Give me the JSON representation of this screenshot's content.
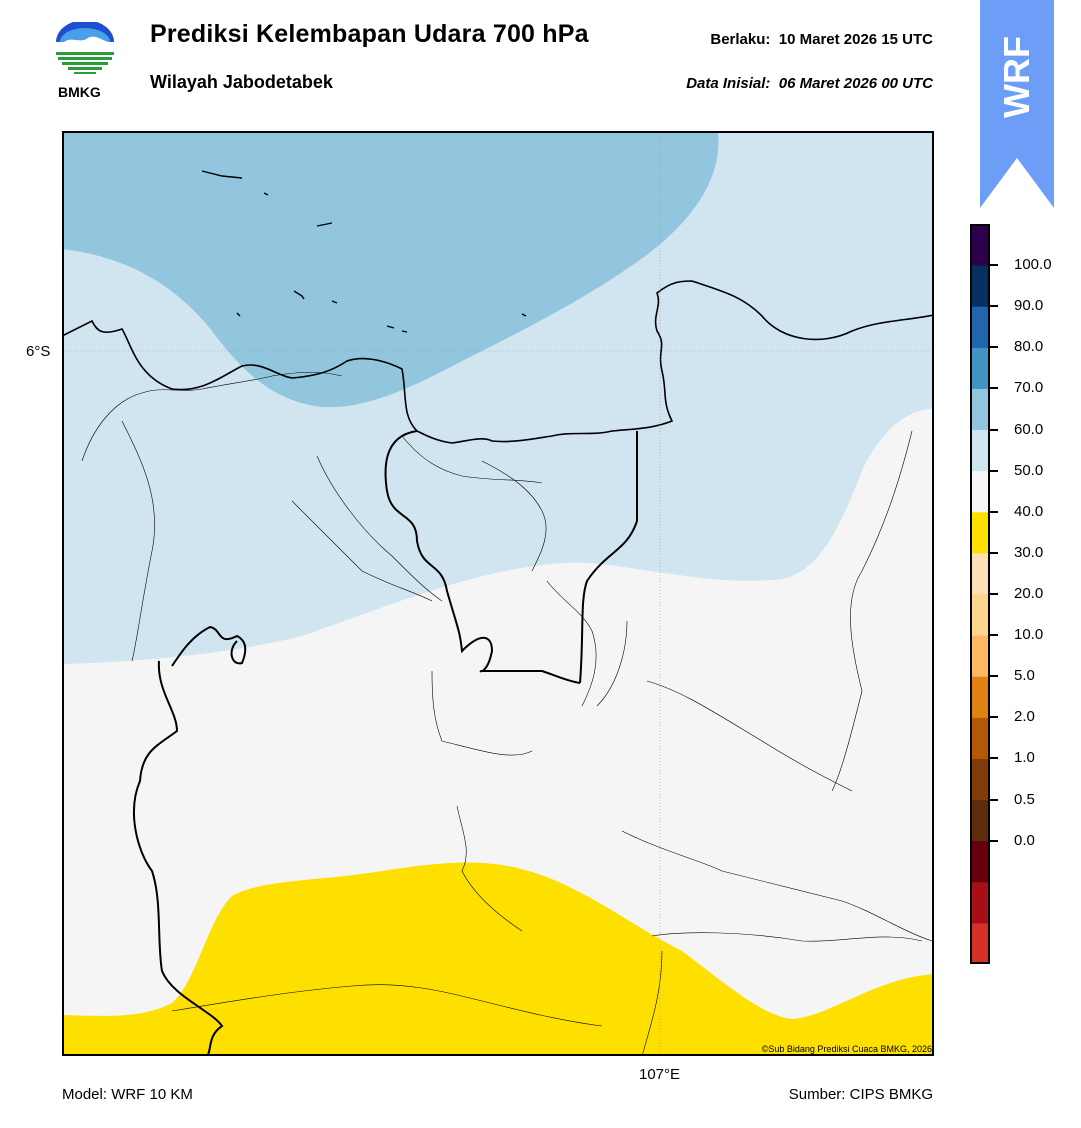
{
  "header": {
    "title": "Prediksi Kelembapan Udara 700 hPa",
    "subtitle": "Wilayah Jabodetabek",
    "valid_label": "Berlaku:",
    "valid_value": "10 Maret 2026 15 UTC",
    "init_label": "Data Inisial:",
    "init_value": "06 Maret 2026 00 UTC"
  },
  "logo": {
    "text": "BMKG",
    "icon": "bmkg-logo"
  },
  "badge": {
    "text": "WRF",
    "color": "#6c9ef8"
  },
  "map": {
    "lat_label": "6°S",
    "lon_label": "107°E",
    "credit": "©Sub Bidang Prediksi Cuaca BMKG, 2026",
    "colors": {
      "humidity_70_80": "#92c5de",
      "humidity_60_70": "#d1e5f0",
      "humidity_40_50": "#f5f5f5",
      "humidity_30_40": "#fde000"
    }
  },
  "colorbar": {
    "labels": [
      "100.0",
      "90.0",
      "80.0",
      "70.0",
      "60.0",
      "50.0",
      "40.0",
      "30.0",
      "20.0",
      "10.0",
      "5.0",
      "2.0",
      "1.0",
      "0.5",
      "0.0"
    ],
    "colors": [
      "#d73027",
      "#a50f15",
      "#67000d",
      "#5c2c0b",
      "#7f3b08",
      "#b35806",
      "#e08214",
      "#fdb863",
      "#fed58c",
      "#fee0b6",
      "#fde000",
      "#f7f7f7",
      "#d1e5f0",
      "#92c5de",
      "#4393c3",
      "#2166ac",
      "#053061",
      "#2d004b"
    ]
  },
  "footer": {
    "model": "Model: WRF 10 KM",
    "source": "Sumber: CIPS BMKG"
  }
}
